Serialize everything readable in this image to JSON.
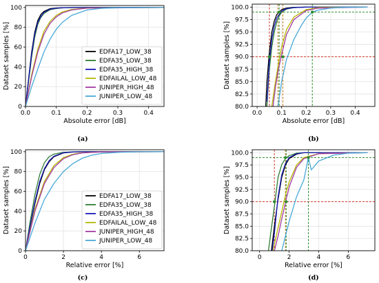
{
  "colors": {
    "EDFA17_LOW_38": "#000000",
    "EDFA35_LOW_38": "#2e7d32",
    "EDFA35_HIGH_38": "#1a1ab8",
    "EDFAILAL_LOW_48": "#b5b800",
    "JUNIPER_HIGH_48": "#a23ba3",
    "JUNIPER_LOW_48": "#47a8d8",
    "ref_red": "#d23a2a",
    "ref_green": "#2e8b2e",
    "ref_orange": "#c47a18"
  },
  "chart_data": [
    {
      "id": "a",
      "type": "line",
      "caption": "(a)",
      "xlabel": "Absolute error [dB]",
      "ylabel": "Dataset samples [%]",
      "xlim": [
        0,
        0.45
      ],
      "ylim": [
        0,
        102
      ],
      "xticks": [
        0.0,
        0.1,
        0.2,
        0.3,
        0.4
      ],
      "xticklabels": [
        "0.0",
        "0.1",
        "0.2",
        "0.3",
        "0.4"
      ],
      "yticks": [
        0,
        20,
        40,
        60,
        80,
        100
      ],
      "yticklabels": [
        "0",
        "20",
        "40",
        "60",
        "80",
        "100"
      ],
      "legend": "bottom-right",
      "series": [
        {
          "name": "EDFA17_LOW_38",
          "colorKey": "EDFA17_LOW_38",
          "x": [
            0,
            0.01,
            0.02,
            0.03,
            0.04,
            0.05,
            0.06,
            0.08,
            0.1,
            0.12,
            0.15,
            0.2,
            0.45
          ],
          "y": [
            0,
            28,
            55,
            75,
            87,
            93,
            96,
            98.8,
            99.5,
            99.8,
            99.9,
            100,
            100
          ]
        },
        {
          "name": "EDFA35_LOW_38",
          "colorKey": "EDFA35_LOW_38",
          "x": [
            0,
            0.01,
            0.02,
            0.03,
            0.04,
            0.05,
            0.06,
            0.08,
            0.1,
            0.12,
            0.15,
            0.2,
            0.45
          ],
          "y": [
            0,
            25,
            50,
            70,
            83,
            90,
            94,
            97.8,
            99,
            99.6,
            99.9,
            100,
            100
          ]
        },
        {
          "name": "EDFA35_HIGH_38",
          "colorKey": "EDFA35_HIGH_38",
          "x": [
            0,
            0.01,
            0.02,
            0.03,
            0.04,
            0.05,
            0.06,
            0.08,
            0.1,
            0.12,
            0.15,
            0.2,
            0.45
          ],
          "y": [
            0,
            27,
            53,
            73,
            85,
            91,
            95,
            98.3,
            99.3,
            99.7,
            99.9,
            100,
            100
          ]
        },
        {
          "name": "EDFAILAL_LOW_48",
          "colorKey": "EDFAILAL_LOW_48",
          "x": [
            0,
            0.02,
            0.04,
            0.06,
            0.08,
            0.1,
            0.12,
            0.15,
            0.2,
            0.45
          ],
          "y": [
            0,
            32,
            58,
            76,
            86,
            92,
            95.5,
            98,
            99.5,
            100
          ]
        },
        {
          "name": "JUNIPER_HIGH_48",
          "colorKey": "JUNIPER_HIGH_48",
          "x": [
            0,
            0.02,
            0.04,
            0.06,
            0.08,
            0.1,
            0.12,
            0.15,
            0.2,
            0.45
          ],
          "y": [
            0,
            30,
            55,
            73,
            84,
            90.5,
            94.5,
            97.5,
            99.3,
            100
          ]
        },
        {
          "name": "JUNIPER_LOW_48",
          "colorKey": "JUNIPER_LOW_48",
          "x": [
            0,
            0.02,
            0.04,
            0.06,
            0.08,
            0.1,
            0.12,
            0.15,
            0.2,
            0.25,
            0.3,
            0.45
          ],
          "y": [
            0,
            20,
            38,
            55,
            68,
            78,
            85,
            92,
            97.5,
            99.2,
            99.8,
            100
          ]
        }
      ]
    },
    {
      "id": "b",
      "type": "line",
      "caption": "(b)",
      "xlabel": "Absolute error [dB]",
      "ylabel": "Dataset samples [%]",
      "xlim": [
        -0.02,
        0.48
      ],
      "ylim": [
        80,
        100.6
      ],
      "xticks": [
        0.0,
        0.1,
        0.2,
        0.3,
        0.4
      ],
      "xticklabels": [
        "0.0",
        "0.1",
        "0.2",
        "0.3",
        "0.4"
      ],
      "yticks": [
        80,
        82.5,
        85,
        87.5,
        90,
        92.5,
        95,
        97.5,
        100
      ],
      "yticklabels": [
        "80.0",
        "82.5",
        "85.0",
        "87.5",
        "90.0",
        "92.5",
        "95.0",
        "97.5",
        "100.0"
      ],
      "hlines": [
        {
          "y": 99,
          "colorKey": "ref_green"
        },
        {
          "y": 90,
          "colorKey": "ref_red"
        }
      ],
      "vlines": [
        {
          "x": 0.05,
          "colorKey": "ref_red"
        },
        {
          "x": 0.085,
          "colorKey": "ref_orange"
        },
        {
          "x": 0.105,
          "colorKey": "ref_orange"
        },
        {
          "x": 0.09,
          "colorKey": "ref_green"
        },
        {
          "x": 0.225,
          "colorKey": "ref_green"
        }
      ],
      "markers": [
        {
          "x": 0.05,
          "y": 90,
          "colorKey": "ref_green"
        },
        {
          "x": 0.105,
          "y": 90,
          "colorKey": "ref_green"
        },
        {
          "x": 0.09,
          "y": 99,
          "colorKey": "ref_green"
        },
        {
          "x": 0.225,
          "y": 99,
          "colorKey": "ref_green"
        }
      ],
      "series": [
        {
          "colorKey": "EDFA17_LOW_38",
          "x": [
            0.035,
            0.04,
            0.05,
            0.06,
            0.07,
            0.08,
            0.1,
            0.12,
            0.15,
            0.2,
            0.45
          ],
          "y": [
            80,
            85,
            91,
            95,
            97.2,
            98.5,
            99.5,
            99.8,
            99.95,
            100,
            100
          ]
        },
        {
          "colorKey": "EDFA35_LOW_38",
          "x": [
            0.04,
            0.045,
            0.05,
            0.06,
            0.07,
            0.08,
            0.09,
            0.1,
            0.12,
            0.15,
            0.2,
            0.45
          ],
          "y": [
            80,
            84,
            87.5,
            92,
            95,
            97,
            98.2,
            99,
            99.6,
            99.9,
            100,
            100
          ]
        },
        {
          "colorKey": "EDFA35_HIGH_38",
          "x": [
            0.04,
            0.05,
            0.06,
            0.07,
            0.08,
            0.1,
            0.12,
            0.15,
            0.2,
            0.45
          ],
          "y": [
            81,
            89,
            93.5,
            96.2,
            97.8,
            99.2,
            99.7,
            99.9,
            100,
            100
          ]
        },
        {
          "colorKey": "EDFAILAL_LOW_48",
          "x": [
            0.06,
            0.07,
            0.08,
            0.09,
            0.1,
            0.12,
            0.15,
            0.2,
            0.25,
            0.45
          ],
          "y": [
            80,
            83.5,
            86.5,
            89.5,
            92,
            95.5,
            98,
            99.5,
            99.9,
            100
          ]
        },
        {
          "colorKey": "JUNIPER_HIGH_48",
          "x": [
            0.065,
            0.075,
            0.085,
            0.1,
            0.12,
            0.15,
            0.2,
            0.25,
            0.45
          ],
          "y": [
            80,
            84,
            87,
            90.5,
            94.5,
            97.5,
            99.3,
            99.8,
            100
          ]
        },
        {
          "colorKey": "JUNIPER_LOW_48",
          "x": [
            0.085,
            0.1,
            0.12,
            0.15,
            0.18,
            0.2,
            0.225,
            0.25,
            0.3,
            0.35,
            0.45
          ],
          "y": [
            80,
            85,
            89.5,
            93.5,
            96.3,
            97.8,
            99,
            99.4,
            99.8,
            99.95,
            100
          ]
        }
      ]
    },
    {
      "id": "c",
      "type": "line",
      "caption": "(c)",
      "xlabel": "Relative error [%]",
      "ylabel": "Dataset samples [%]",
      "xlim": [
        0,
        7.3
      ],
      "ylim": [
        0,
        102
      ],
      "xticks": [
        0,
        2,
        4,
        6
      ],
      "xticklabels": [
        "0",
        "2",
        "4",
        "6"
      ],
      "yticks": [
        0,
        20,
        40,
        60,
        80,
        100
      ],
      "yticklabels": [
        "0",
        "20",
        "40",
        "60",
        "80",
        "100"
      ],
      "legend": "bottom-right",
      "series": [
        {
          "name": "EDFA17_LOW_38",
          "colorKey": "EDFA17_LOW_38",
          "x": [
            0,
            0.25,
            0.5,
            0.75,
            1,
            1.25,
            1.5,
            2,
            2.5,
            3,
            7.3
          ],
          "y": [
            0,
            25,
            48,
            68,
            82,
            90,
            95,
            98.8,
            99.7,
            100,
            100
          ]
        },
        {
          "name": "EDFA35_LOW_38",
          "colorKey": "EDFA35_LOW_38",
          "x": [
            0,
            0.25,
            0.5,
            0.75,
            1,
            1.25,
            1.5,
            2,
            2.5,
            3,
            7.3
          ],
          "y": [
            0,
            30,
            57,
            77,
            89,
            95,
            97.6,
            99.4,
            99.9,
            100,
            100
          ]
        },
        {
          "name": "EDFA35_HIGH_38",
          "colorKey": "EDFA35_HIGH_38",
          "x": [
            0,
            0.25,
            0.5,
            0.75,
            1,
            1.25,
            1.5,
            2,
            2.5,
            3,
            7.3
          ],
          "y": [
            0,
            26,
            50,
            70,
            83,
            91,
            95.5,
            99,
            99.8,
            100,
            100
          ]
        },
        {
          "name": "EDFAILAL_LOW_48",
          "colorKey": "EDFAILAL_LOW_48",
          "x": [
            0,
            0.5,
            1,
            1.5,
            2,
            2.5,
            3,
            4,
            7.3
          ],
          "y": [
            0,
            42,
            70,
            86,
            94,
            97.5,
            99,
            99.8,
            100
          ]
        },
        {
          "name": "JUNIPER_HIGH_48",
          "colorKey": "JUNIPER_HIGH_48",
          "x": [
            0,
            0.5,
            1,
            1.5,
            2,
            2.5,
            3,
            4,
            7.3
          ],
          "y": [
            0,
            40,
            68,
            84,
            93,
            97,
            98.8,
            99.8,
            100
          ]
        },
        {
          "name": "JUNIPER_LOW_48",
          "colorKey": "JUNIPER_LOW_48",
          "x": [
            0,
            0.5,
            1,
            1.5,
            2,
            2.5,
            3,
            3.5,
            4,
            5,
            6,
            7.3
          ],
          "y": [
            0,
            28,
            52,
            68,
            80,
            88,
            93.5,
            96.5,
            98.3,
            99.5,
            99.9,
            100
          ]
        }
      ]
    },
    {
      "id": "d",
      "type": "line",
      "caption": "(d)",
      "xlabel": "Relative error [%]",
      "ylabel": "Dataset samples [%]",
      "xlim": [
        -0.5,
        7.8
      ],
      "ylim": [
        80,
        100.6
      ],
      "xticks": [
        0,
        2,
        4,
        6
      ],
      "xticklabels": [
        "0",
        "2",
        "4",
        "6"
      ],
      "yticks": [
        80,
        82.5,
        85,
        87.5,
        90,
        92.5,
        95,
        97.5,
        100
      ],
      "yticklabels": [
        "80.0",
        "82.5",
        "85.0",
        "87.5",
        "90.0",
        "92.5",
        "95.0",
        "97.5",
        "100.0"
      ],
      "hlines": [
        {
          "y": 99,
          "colorKey": "ref_green"
        },
        {
          "y": 90,
          "colorKey": "ref_red"
        }
      ],
      "vlines": [
        {
          "x": 1.0,
          "colorKey": "ref_red"
        },
        {
          "x": 1.75,
          "colorKey": "ref_orange"
        },
        {
          "x": 1.8,
          "colorKey": "ref_green"
        },
        {
          "x": 3.3,
          "colorKey": "ref_green"
        }
      ],
      "markers": [
        {
          "x": 1.0,
          "y": 90,
          "colorKey": "ref_green"
        },
        {
          "x": 1.8,
          "y": 90,
          "colorKey": "ref_green"
        },
        {
          "x": 1.75,
          "y": 99,
          "colorKey": "ref_green"
        },
        {
          "x": 3.3,
          "y": 99,
          "colorKey": "ref_green"
        }
      ],
      "series": [
        {
          "colorKey": "EDFA17_LOW_38",
          "x": [
            0.8,
            1,
            1.25,
            1.5,
            1.75,
            2,
            2.5,
            3,
            7.3
          ],
          "y": [
            80,
            85,
            90.5,
            95,
            97.5,
            98.8,
            99.7,
            100,
            100
          ]
        },
        {
          "colorKey": "EDFA35_LOW_38",
          "x": [
            0.6,
            0.75,
            1,
            1.25,
            1.5,
            1.75,
            2,
            2.5,
            3,
            7.3
          ],
          "y": [
            80,
            83.5,
            89,
            95,
            97.6,
            98.8,
            99.4,
            99.9,
            100,
            100
          ]
        },
        {
          "colorKey": "EDFA35_HIGH_38",
          "x": [
            0.85,
            1,
            1.25,
            1.5,
            1.75,
            2,
            2.5,
            3,
            7.3
          ],
          "y": [
            80,
            83.5,
            91,
            95.5,
            97.8,
            99,
            99.8,
            100,
            100
          ]
        },
        {
          "colorKey": "EDFAILAL_LOW_48",
          "x": [
            0.9,
            1.2,
            1.5,
            1.8,
            2,
            2.5,
            3,
            4,
            7.3
          ],
          "y": [
            80,
            84,
            88,
            92,
            94,
            97.5,
            99,
            99.8,
            100
          ]
        },
        {
          "colorKey": "JUNIPER_HIGH_48",
          "x": [
            1.0,
            1.25,
            1.5,
            1.8,
            2,
            2.5,
            3,
            4,
            7.3
          ],
          "y": [
            80,
            83,
            86.5,
            90.5,
            93,
            97,
            98.8,
            99.8,
            100
          ]
        },
        {
          "colorKey": "JUNIPER_LOW_48",
          "x": [
            1.5,
            1.75,
            2,
            2.5,
            3,
            3.3,
            3.5,
            4,
            5,
            6,
            7.3
          ],
          "y": [
            80,
            83,
            86,
            91,
            94.5,
            99,
            96.5,
            98.3,
            99.5,
            99.9,
            100
          ]
        }
      ]
    }
  ]
}
